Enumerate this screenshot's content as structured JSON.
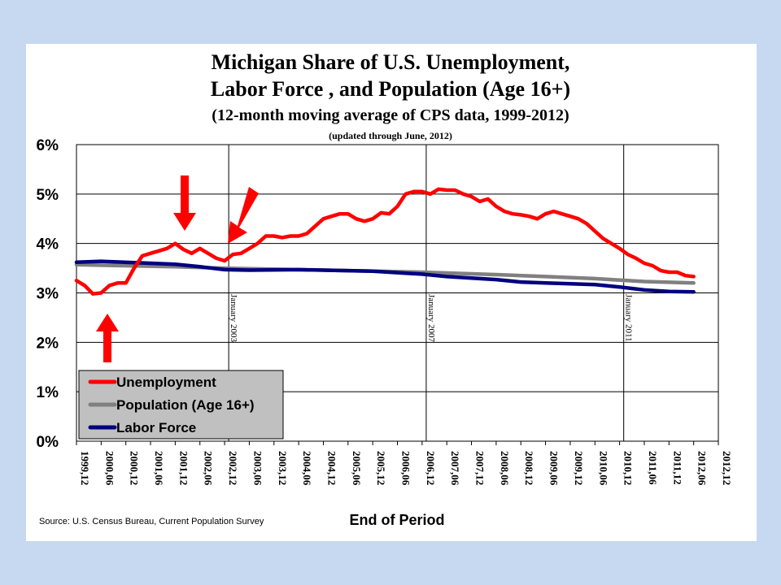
{
  "chart_data": {
    "type": "line",
    "title_lines": [
      "Michigan Share of U.S. Unemployment,",
      "Labor Force , and Population (Age 16+)",
      "(12-month moving average of CPS data, 1999-2012)",
      "(updated through June, 2012)"
    ],
    "xlabel": "End of Period",
    "ylabel": "",
    "ylim": [
      0,
      6
    ],
    "yticks": [
      "0%",
      "1%",
      "2%",
      "3%",
      "4%",
      "5%",
      "6%"
    ],
    "xlim": [
      "1999,12",
      "2012,12"
    ],
    "xticks": [
      "1999,12",
      "2000,06",
      "2000,12",
      "2001,06",
      "2001,12",
      "2002,06",
      "2002,12",
      "2003,06",
      "2003,12",
      "2004,06",
      "2004,12",
      "2005,06",
      "2005,12",
      "2006,06",
      "2006,12",
      "2007,06",
      "2007,12",
      "2008,06",
      "2008,12",
      "2009,06",
      "2009,12",
      "2010,06",
      "2010,12",
      "2011,06",
      "2011,12",
      "2012,06",
      "2012,12"
    ],
    "grid": "horizontal",
    "legend_position": "bottom-left",
    "vertical_markers": [
      {
        "label": "January 2003",
        "x": "2003,01"
      },
      {
        "label": "January 2007",
        "x": "2007,01"
      },
      {
        "label": "January 2011",
        "x": "2011,01"
      }
    ],
    "series": [
      {
        "name": "Unemployment",
        "color": "#ff0000",
        "x": [
          "1999,12",
          "2000,02",
          "2000,04",
          "2000,06",
          "2000,08",
          "2000,10",
          "2000,12",
          "2001,02",
          "2001,04",
          "2001,06",
          "2001,08",
          "2001,10",
          "2001,12",
          "2002,02",
          "2002,04",
          "2002,06",
          "2002,08",
          "2002,10",
          "2002,12",
          "2003,02",
          "2003,04",
          "2003,06",
          "2003,08",
          "2003,10",
          "2003,12",
          "2004,02",
          "2004,04",
          "2004,06",
          "2004,08",
          "2004,10",
          "2004,12",
          "2005,02",
          "2005,04",
          "2005,06",
          "2005,08",
          "2005,10",
          "2005,12",
          "2006,02",
          "2006,04",
          "2006,06",
          "2006,08",
          "2006,10",
          "2006,12",
          "2007,02",
          "2007,04",
          "2007,06",
          "2007,08",
          "2007,10",
          "2007,12",
          "2008,02",
          "2008,04",
          "2008,06",
          "2008,08",
          "2008,10",
          "2008,12",
          "2009,02",
          "2009,04",
          "2009,06",
          "2009,08",
          "2009,10",
          "2009,12",
          "2010,02",
          "2010,04",
          "2010,06",
          "2010,08",
          "2010,10",
          "2010,12",
          "2011,02",
          "2011,04",
          "2011,06",
          "2011,08",
          "2011,10",
          "2011,12",
          "2012,02",
          "2012,04",
          "2012,06"
        ],
        "values": [
          3.25,
          3.15,
          2.98,
          3.0,
          3.15,
          3.2,
          3.2,
          3.5,
          3.75,
          3.8,
          3.85,
          3.9,
          4.0,
          3.88,
          3.8,
          3.9,
          3.8,
          3.7,
          3.65,
          3.78,
          3.8,
          3.9,
          4.0,
          4.15,
          4.15,
          4.12,
          4.15,
          4.15,
          4.2,
          4.35,
          4.5,
          4.55,
          4.6,
          4.6,
          4.5,
          4.45,
          4.5,
          4.62,
          4.6,
          4.75,
          5.0,
          5.05,
          5.05,
          5.0,
          5.1,
          5.08,
          5.08,
          5.0,
          4.95,
          4.85,
          4.9,
          4.75,
          4.65,
          4.6,
          4.58,
          4.55,
          4.5,
          4.6,
          4.65,
          4.6,
          4.55,
          4.5,
          4.4,
          4.25,
          4.1,
          4.0,
          3.9,
          3.78,
          3.7,
          3.6,
          3.55,
          3.45,
          3.42,
          3.42,
          3.35,
          3.33
        ]
      },
      {
        "name": "Population (Age 16+)",
        "color": "#808080",
        "x": [
          "1999,12",
          "2001,12",
          "2002,12",
          "2004,06",
          "2006,12",
          "2008,06",
          "2009,06",
          "2010,06",
          "2010,12",
          "2011,06",
          "2012,06"
        ],
        "values": [
          3.57,
          3.53,
          3.5,
          3.47,
          3.42,
          3.37,
          3.33,
          3.29,
          3.26,
          3.23,
          3.2
        ]
      },
      {
        "name": "Labor Force",
        "color": "#000080",
        "x": [
          "1999,12",
          "2000,06",
          "2001,06",
          "2001,12",
          "2002,06",
          "2002,12",
          "2003,06",
          "2004,06",
          "2005,06",
          "2005,12",
          "2006,06",
          "2006,12",
          "2007,06",
          "2008,06",
          "2008,12",
          "2009,06",
          "2010,06",
          "2010,12",
          "2011,06",
          "2011,12",
          "2012,06"
        ],
        "values": [
          3.62,
          3.64,
          3.6,
          3.58,
          3.53,
          3.47,
          3.46,
          3.47,
          3.45,
          3.44,
          3.41,
          3.38,
          3.33,
          3.27,
          3.22,
          3.2,
          3.17,
          3.12,
          3.06,
          3.03,
          3.02
        ]
      }
    ]
  },
  "source_text": "Source: U.S. Census Bureau, Current Population Survey"
}
